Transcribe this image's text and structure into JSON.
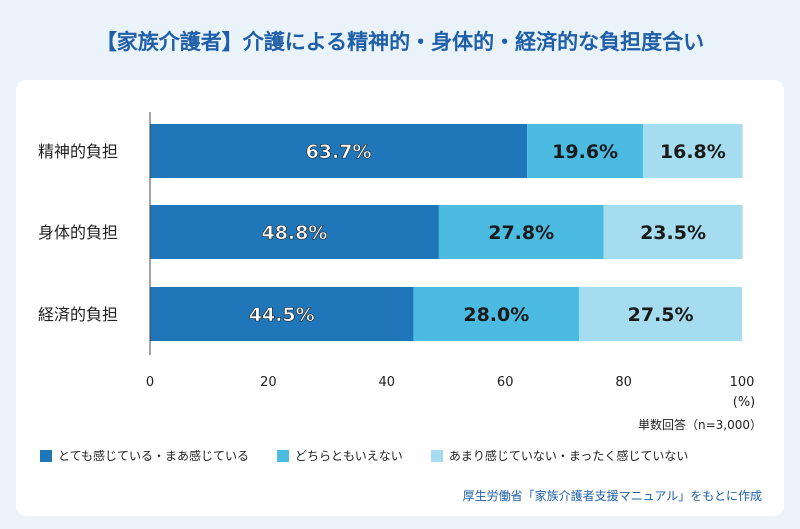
{
  "title": "【家族介護者】介護による精神的・身体的・経済的な負担度合い",
  "note": "単数回答（n=3,000）",
  "source": "厚生労働省「家族介護者支援マニュアル」をもとに作成",
  "unit_label": "(%)",
  "colors": {
    "series_0": "#1f77b9",
    "series_1": "#4bbbe2",
    "series_2": "#a6dcef"
  },
  "chart_data": {
    "type": "bar",
    "orientation": "horizontal",
    "stacked": true,
    "categories": [
      "精神的負担",
      "身体的負担",
      "経済的負担"
    ],
    "series": [
      {
        "name": "とても感じている・まあ感じている",
        "values": [
          63.7,
          48.8,
          44.5
        ]
      },
      {
        "name": "どちらともいえない",
        "values": [
          19.6,
          27.8,
          28.0
        ]
      },
      {
        "name": "あまり感じていない・まったく感じていない",
        "values": [
          16.8,
          23.5,
          27.5
        ]
      }
    ],
    "value_labels": [
      [
        "63.7%",
        "48.8%",
        "44.5%"
      ],
      [
        "19.6%",
        "27.8%",
        "28.0%"
      ],
      [
        "16.8%",
        "23.5%",
        "27.5%"
      ]
    ],
    "xlim": [
      0,
      100
    ],
    "xticks": [
      "0",
      "20",
      "40",
      "60",
      "80",
      "100"
    ],
    "legend_position": "bottom-left",
    "grid": false
  }
}
